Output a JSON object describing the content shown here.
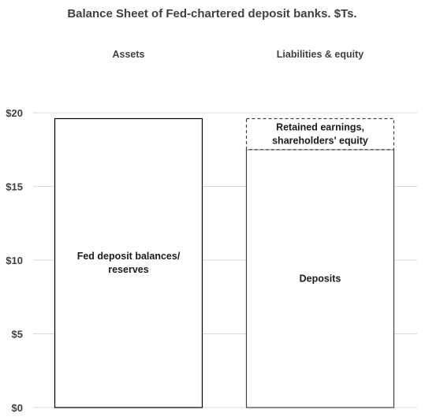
{
  "chart_data": {
    "type": "bar",
    "title": "Balance Sheet of Fed-chartered deposit banks. $Ts.",
    "categories": [
      "Assets",
      "Liabilities & equity"
    ],
    "ylim": [
      0,
      20
    ],
    "y_ticks": [
      {
        "value": 0,
        "label": "$0"
      },
      {
        "value": 5,
        "label": "$5"
      },
      {
        "value": 10,
        "label": "$10"
      },
      {
        "value": 15,
        "label": "$15"
      },
      {
        "value": 20,
        "label": "$20"
      }
    ],
    "grid": true,
    "stacked": true,
    "segments": [
      {
        "category": "Assets",
        "bottom": 0,
        "top": 19.6,
        "label": [
          "Fed deposit balances/",
          "reserves"
        ],
        "style": "solid",
        "stroke": "#000000"
      },
      {
        "category": "Liabilities & equity",
        "bottom": 0,
        "top": 17.5,
        "label": [
          "Deposits"
        ],
        "style": "solid",
        "stroke": "#404040"
      },
      {
        "category": "Liabilities & equity",
        "bottom": 17.5,
        "top": 19.6,
        "label": [
          "Retained earnings,",
          "shareholders' equity"
        ],
        "style": "dashed",
        "stroke": "#404040"
      }
    ],
    "colors": {
      "grid": "#d9d9d9",
      "text": "#404040",
      "fill": "#ffffff"
    }
  }
}
